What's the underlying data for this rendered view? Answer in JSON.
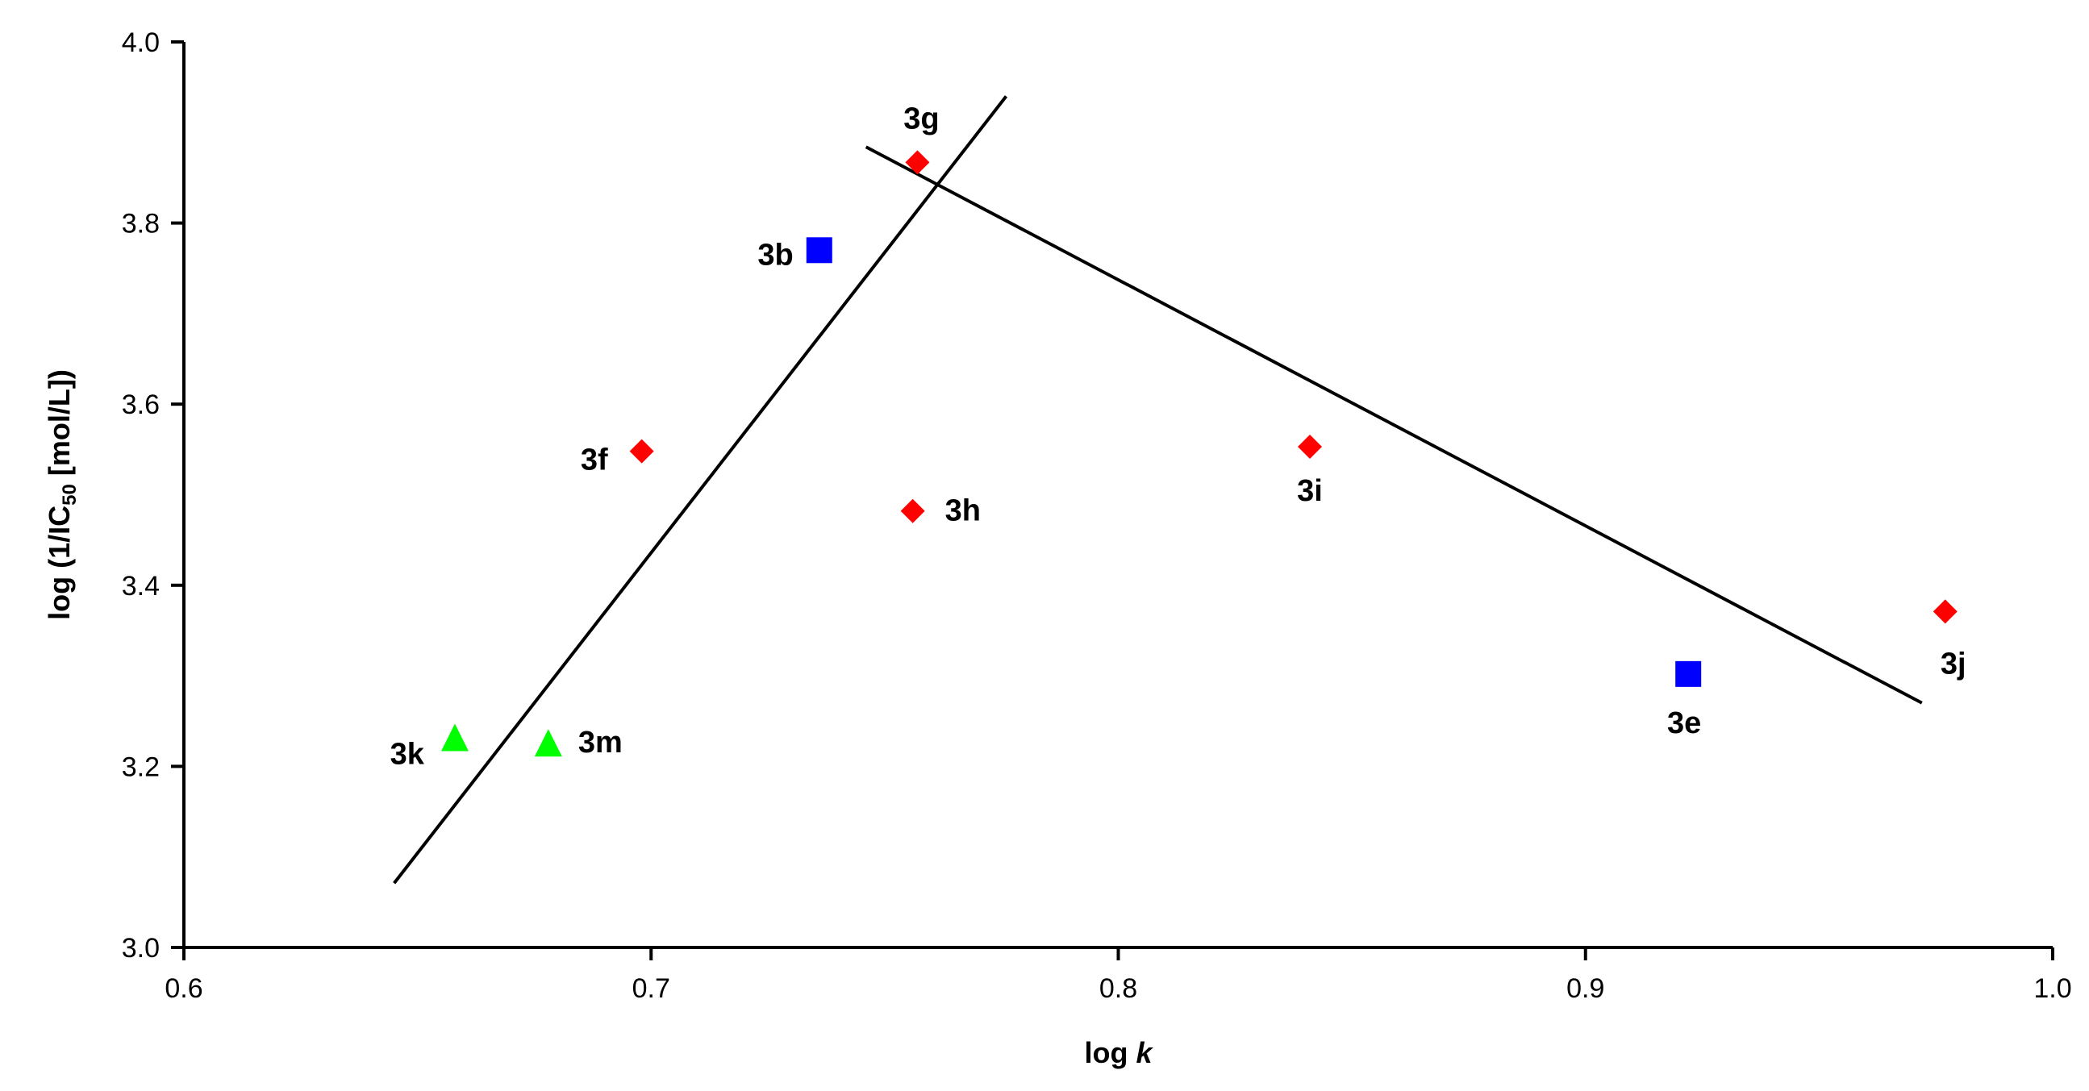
{
  "chart_data": {
    "type": "scatter",
    "xlabel": {
      "main": "log ",
      "italic": "k"
    },
    "ylabel": {
      "prefix": "log (1/IC",
      "sub": "50",
      "suffix": " [mol/L])"
    },
    "xlim": [
      0.6,
      1.0
    ],
    "ylim": [
      3.0,
      4.0
    ],
    "xticks": [
      "0.6",
      "0.7",
      "0.8",
      "0.9",
      "1.0"
    ],
    "yticks": [
      "3.0",
      "3.2",
      "3.4",
      "3.6",
      "3.8",
      "4.0"
    ],
    "grid": false,
    "colors": {
      "red": "#ff0000",
      "blue": "#0000ff",
      "green": "#00ff00"
    },
    "series": [
      {
        "marker": "diamond",
        "color": "#ff0000",
        "points": [
          {
            "label": "3g",
            "x": 0.757,
            "y": 3.867
          },
          {
            "label": "3f",
            "x": 0.698,
            "y": 3.548
          },
          {
            "label": "3h",
            "x": 0.756,
            "y": 3.482
          },
          {
            "label": "3i",
            "x": 0.841,
            "y": 3.553
          },
          {
            "label": "3j",
            "x": 0.977,
            "y": 3.371
          }
        ]
      },
      {
        "marker": "square",
        "color": "#0000ff",
        "points": [
          {
            "label": "3b",
            "x": 0.736,
            "y": 3.77
          },
          {
            "label": "3e",
            "x": 0.922,
            "y": 3.302
          }
        ]
      },
      {
        "marker": "triangle",
        "color": "#00ff00",
        "points": [
          {
            "label": "3k",
            "x": 0.658,
            "y": 3.232
          },
          {
            "label": "3m",
            "x": 0.678,
            "y": 3.226
          }
        ]
      }
    ],
    "lines": [
      {
        "x": [
          0.645,
          0.776
        ],
        "y": [
          3.071,
          3.94
        ]
      },
      {
        "x": [
          0.746,
          0.972
        ],
        "y": [
          3.884,
          3.27
        ]
      }
    ]
  }
}
